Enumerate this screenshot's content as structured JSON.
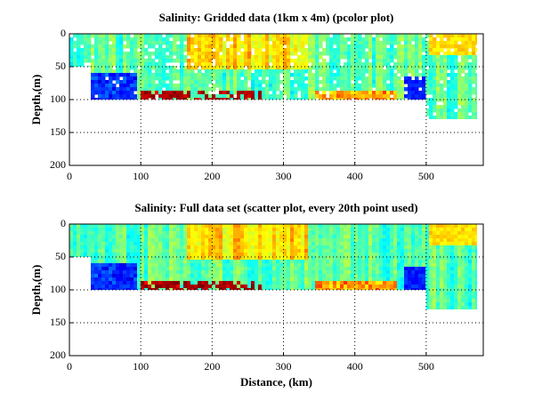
{
  "chart_data": [
    {
      "type": "heatmap",
      "title": "Salinity: Gridded data (1km x 4m) (pcolor plot)",
      "ylabel": "Depth,(m)",
      "xlim": [
        0,
        580
      ],
      "ylim": [
        0,
        200
      ],
      "y_reversed": true,
      "xticks": [
        0,
        100,
        200,
        300,
        400,
        500
      ],
      "yticks": [
        0,
        50,
        100,
        150,
        200
      ],
      "grid": true
    },
    {
      "type": "heatmap",
      "title": "Salinity: Full data set (scatter plot, every 20th point used)",
      "ylabel": "Depth,(m)",
      "xlabel": "Distance, (km)",
      "xlim": [
        0,
        580
      ],
      "ylim": [
        0,
        200
      ],
      "y_reversed": true,
      "xticks": [
        0,
        100,
        200,
        300,
        400,
        500
      ],
      "yticks": [
        0,
        50,
        100,
        150,
        200
      ],
      "grid": true
    }
  ]
}
